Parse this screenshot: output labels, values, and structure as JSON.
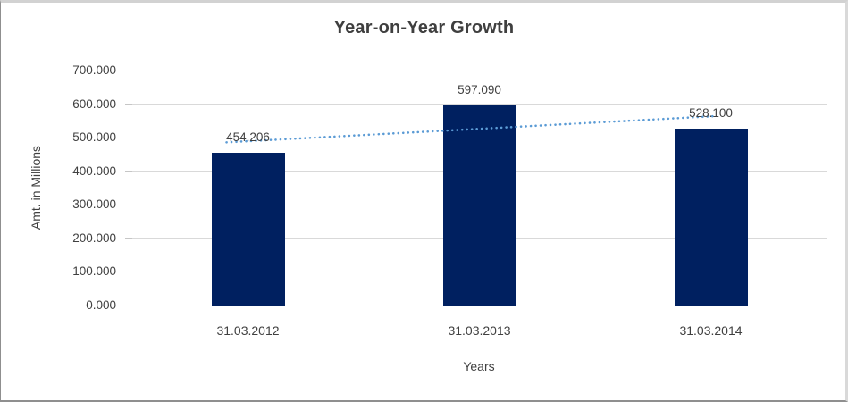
{
  "chart_data": {
    "type": "bar",
    "title": "Year-on-Year Growth",
    "categories": [
      "31.03.2012",
      "31.03.2013",
      "31.03.2014"
    ],
    "values": [
      454.206,
      597.09,
      528.1
    ],
    "data_labels": [
      "454.206",
      "597.090",
      "528.100"
    ],
    "xlabel": "Years",
    "ylabel": "Amt. in Millions",
    "ylim": [
      0,
      700
    ],
    "ytick_step": 100,
    "yticks": [
      "700.000",
      "600.000",
      "500.000",
      "400.000",
      "300.000",
      "200.000",
      "100.000",
      "0.000"
    ],
    "grid": true,
    "legend": "none",
    "trendline": {
      "type": "linear",
      "style": "dotted"
    },
    "colors": {
      "bar": "#002060",
      "trendline": "#5b9bd5",
      "gridline": "#d9d9d9",
      "tick": "#c6c6c6",
      "text": "#404040",
      "title": "#3f3f3f",
      "background": "#ffffff"
    }
  }
}
